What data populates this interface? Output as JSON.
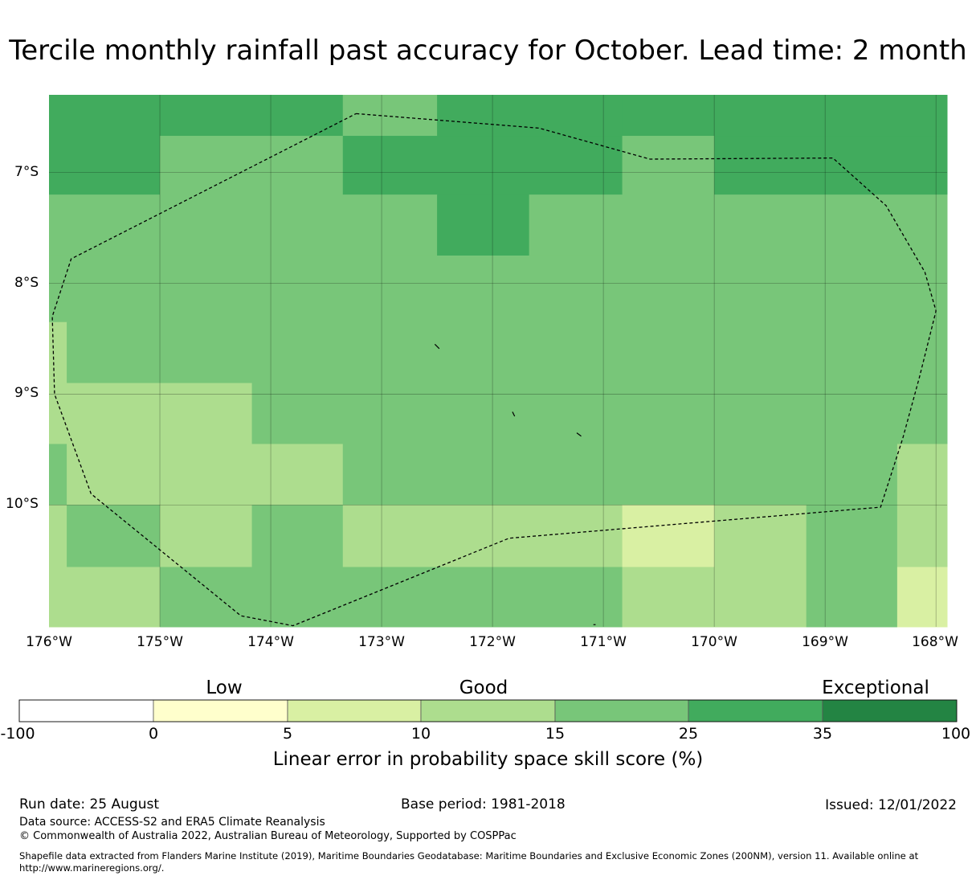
{
  "title": "Tercile monthly rainfall past accuracy for October. Lead time: 2 month",
  "map": {
    "lat_labels": [
      "7°S",
      "8°S",
      "9°S",
      "10°S"
    ],
    "lon_labels": [
      "176°W",
      "175°W",
      "174°W",
      "173°W",
      "172°W",
      "171°W",
      "170°W",
      "169°W",
      "168°W"
    ],
    "lon_range": [
      -176,
      -167.9
    ],
    "lat_range": [
      -11.1,
      -6.3
    ],
    "grid_lats": [
      -7,
      -8,
      -9,
      -10
    ],
    "grid_lons": [
      -175,
      -174,
      -173,
      -172,
      -171,
      -170,
      -169,
      -168
    ],
    "colors": {
      "c0": "#ffffff",
      "c1": "#ffffcc",
      "c2": "#d9f0a3",
      "c3": "#addd8e",
      "c4": "#78c679",
      "c5": "#41ab5d",
      "c6": "#238443"
    },
    "cells": [
      {
        "lon0": -176.0,
        "lon1": -175.0,
        "lat0": -7.2,
        "lat1": -6.3,
        "c": "c5"
      },
      {
        "lon0": -175.0,
        "lon1": -173.35,
        "lat0": -6.67,
        "lat1": -6.3,
        "c": "c5"
      },
      {
        "lon0": -173.35,
        "lon1": -172.5,
        "lat0": -6.67,
        "lat1": -6.3,
        "c": "c4"
      },
      {
        "lon0": -172.5,
        "lon1": -170.83,
        "lat0": -6.67,
        "lat1": -6.3,
        "c": "c5"
      },
      {
        "lon0": -170.83,
        "lon1": -167.9,
        "lat0": -6.67,
        "lat1": -6.3,
        "c": "c5"
      },
      {
        "lon0": -175.0,
        "lon1": -173.35,
        "lat0": -7.2,
        "lat1": -6.67,
        "c": "c4"
      },
      {
        "lon0": -173.35,
        "lon1": -170.83,
        "lat0": -7.2,
        "lat1": -6.67,
        "c": "c5"
      },
      {
        "lon0": -170.83,
        "lon1": -170.0,
        "lat0": -7.2,
        "lat1": -6.67,
        "c": "c4"
      },
      {
        "lon0": -170.0,
        "lon1": -167.9,
        "lat0": -7.2,
        "lat1": -6.67,
        "c": "c5"
      },
      {
        "lon0": -176.0,
        "lon1": -172.5,
        "lat0": -7.75,
        "lat1": -7.2,
        "c": "c4"
      },
      {
        "lon0": -172.5,
        "lon1": -171.67,
        "lat0": -7.75,
        "lat1": -7.2,
        "c": "c5"
      },
      {
        "lon0": -171.67,
        "lon1": -167.9,
        "lat0": -7.75,
        "lat1": -7.2,
        "c": "c4"
      },
      {
        "lon0": -176.0,
        "lon1": -167.9,
        "lat0": -8.35,
        "lat1": -7.75,
        "c": "c4"
      },
      {
        "lon0": -176.0,
        "lon1": -175.84,
        "lat0": -8.9,
        "lat1": -8.35,
        "c": "c3"
      },
      {
        "lon0": -175.84,
        "lon1": -167.9,
        "lat0": -8.9,
        "lat1": -8.35,
        "c": "c4"
      },
      {
        "lon0": -176.0,
        "lon1": -174.17,
        "lat0": -9.45,
        "lat1": -8.9,
        "c": "c3"
      },
      {
        "lon0": -174.17,
        "lon1": -167.9,
        "lat0": -9.45,
        "lat1": -8.9,
        "c": "c4"
      },
      {
        "lon0": -176.0,
        "lon1": -175.84,
        "lat0": -10.0,
        "lat1": -9.45,
        "c": "c4"
      },
      {
        "lon0": -175.84,
        "lon1": -173.35,
        "lat0": -10.0,
        "lat1": -9.45,
        "c": "c3"
      },
      {
        "lon0": -173.35,
        "lon1": -168.35,
        "lat0": -10.0,
        "lat1": -9.45,
        "c": "c4"
      },
      {
        "lon0": -168.35,
        "lon1": -167.9,
        "lat0": -10.0,
        "lat1": -9.45,
        "c": "c3"
      },
      {
        "lon0": -176.0,
        "lon1": -175.84,
        "lat0": -10.56,
        "lat1": -10.0,
        "c": "c3"
      },
      {
        "lon0": -175.84,
        "lon1": -175.0,
        "lat0": -10.56,
        "lat1": -10.0,
        "c": "c4"
      },
      {
        "lon0": -175.0,
        "lon1": -174.17,
        "lat0": -10.56,
        "lat1": -10.0,
        "c": "c3"
      },
      {
        "lon0": -174.17,
        "lon1": -173.35,
        "lat0": -10.56,
        "lat1": -10.0,
        "c": "c4"
      },
      {
        "lon0": -173.35,
        "lon1": -170.83,
        "lat0": -10.56,
        "lat1": -10.0,
        "c": "c3"
      },
      {
        "lon0": -170.83,
        "lon1": -170.0,
        "lat0": -10.56,
        "lat1": -10.0,
        "c": "c2"
      },
      {
        "lon0": -170.0,
        "lon1": -169.17,
        "lat0": -10.56,
        "lat1": -10.0,
        "c": "c3"
      },
      {
        "lon0": -169.17,
        "lon1": -168.35,
        "lat0": -10.56,
        "lat1": -10.0,
        "c": "c4"
      },
      {
        "lon0": -168.35,
        "lon1": -167.9,
        "lat0": -10.56,
        "lat1": -10.0,
        "c": "c3"
      },
      {
        "lon0": -176.0,
        "lon1": -175.0,
        "lat0": -11.1,
        "lat1": -10.56,
        "c": "c3"
      },
      {
        "lon0": -175.0,
        "lon1": -170.83,
        "lat0": -11.1,
        "lat1": -10.56,
        "c": "c4"
      },
      {
        "lon0": -170.83,
        "lon1": -169.17,
        "lat0": -11.1,
        "lat1": -10.56,
        "c": "c3"
      },
      {
        "lon0": -169.17,
        "lon1": -168.35,
        "lat0": -11.1,
        "lat1": -10.56,
        "c": "c4"
      },
      {
        "lon0": -168.35,
        "lon1": -167.9,
        "lat0": -11.1,
        "lat1": -10.56,
        "c": "c2"
      }
    ],
    "eez_boundary": [
      [
        -173.23,
        -6.47
      ],
      [
        -171.58,
        -6.6
      ],
      [
        -170.58,
        -6.88
      ],
      [
        -168.93,
        -6.87
      ],
      [
        -168.45,
        -7.3
      ],
      [
        -168.1,
        -7.9
      ],
      [
        -168.0,
        -8.25
      ],
      [
        -168.15,
        -8.85
      ],
      [
        -168.3,
        -9.4
      ],
      [
        -168.5,
        -10.02
      ],
      [
        -171.85,
        -10.3
      ],
      [
        -173.8,
        -11.09
      ],
      [
        -174.27,
        -11.0
      ],
      [
        -175.62,
        -9.9
      ],
      [
        -175.95,
        -9.0
      ],
      [
        -175.97,
        -8.3
      ],
      [
        -175.8,
        -7.78
      ],
      [
        -173.23,
        -6.47
      ]
    ],
    "islands": [
      [
        [
          -172.52,
          -8.55
        ],
        [
          -172.48,
          -8.59
        ]
      ],
      [
        [
          -171.82,
          -9.16
        ],
        [
          -171.8,
          -9.2
        ]
      ],
      [
        [
          -171.24,
          -9.35
        ],
        [
          -171.2,
          -9.38
        ]
      ],
      [
        [
          -171.09,
          -11.08
        ],
        [
          -171.07,
          -11.08
        ]
      ]
    ]
  },
  "colorbar": {
    "categories": [
      "Low",
      "Good",
      "Exceptional"
    ],
    "ticks": [
      "-100",
      "0",
      "5",
      "10",
      "15",
      "25",
      "35",
      "100"
    ],
    "segment_colors": [
      "c0",
      "c1",
      "c2",
      "c3",
      "c4",
      "c5",
      "c6"
    ],
    "label": "Linear error in probability space skill score (%)"
  },
  "footer": {
    "run_date": "Run date: 25 August",
    "base_period": "Base period: 1981-2018",
    "issued": "Issued: 12/01/2022",
    "data_source": "Data source: ACCESS-S2 and ERA5 Climate Reanalysis",
    "copyright": "© Commonwealth of Australia 2022, Australian Bureau of Meteorology, Supported by COSPPac",
    "shapefile_line1": "Shapefile data extracted from Flanders Marine Institute (2019), Maritime Boundaries Geodatabase: Maritime Boundaries and Exclusive Economic Zones (200NM), version 11. Available online at",
    "shapefile_line2": "http://www.marineregions.org/."
  }
}
